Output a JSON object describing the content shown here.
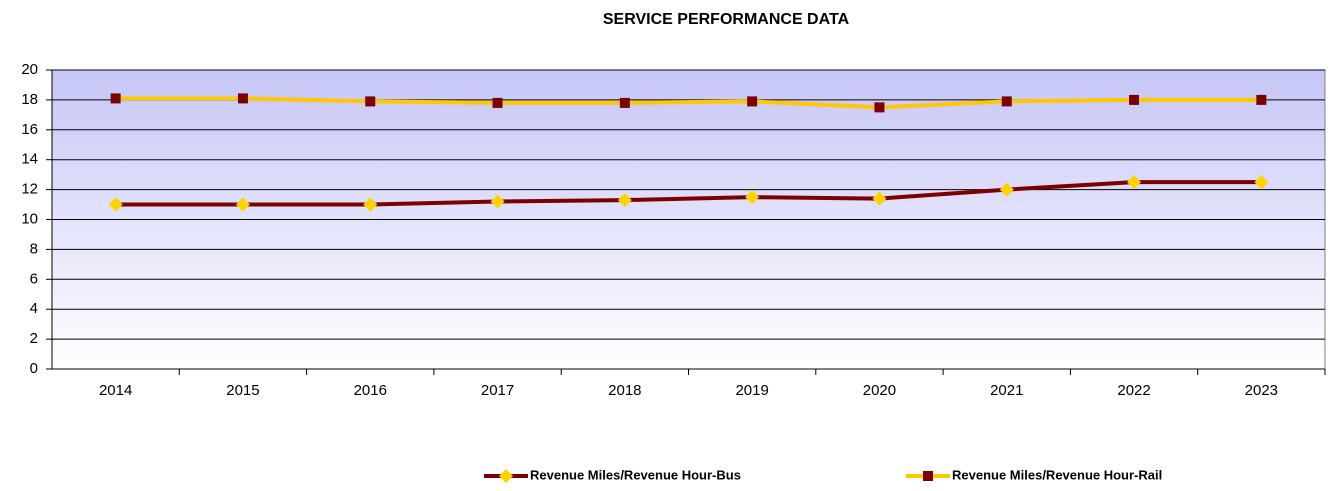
{
  "chart_data": {
    "type": "line",
    "title": "SERVICE PERFORMANCE DATA",
    "categories": [
      "2014",
      "2015",
      "2016",
      "2017",
      "2018",
      "2019",
      "2020",
      "2021",
      "2022",
      "2023"
    ],
    "series": [
      {
        "name": "Revenue Miles/Revenue Hour-Bus",
        "color": "#7b0000",
        "marker_color": "#ffd200",
        "marker": "diamond",
        "values": [
          11,
          11,
          11,
          11.2,
          11.3,
          11.5,
          11.4,
          12,
          12.5,
          12.5
        ]
      },
      {
        "name": "Revenue Miles/Revenue Hour-Rail",
        "color": "#ffc800",
        "marker_color": "#7b0000",
        "marker": "square",
        "values": [
          18.1,
          18.1,
          17.9,
          17.8,
          17.8,
          17.9,
          17.5,
          17.9,
          18,
          18
        ]
      }
    ],
    "ylim": [
      0,
      20
    ],
    "yticks": [
      0,
      2,
      4,
      6,
      8,
      10,
      12,
      14,
      16,
      18,
      20
    ],
    "grid": true,
    "legend": "bottom"
  }
}
